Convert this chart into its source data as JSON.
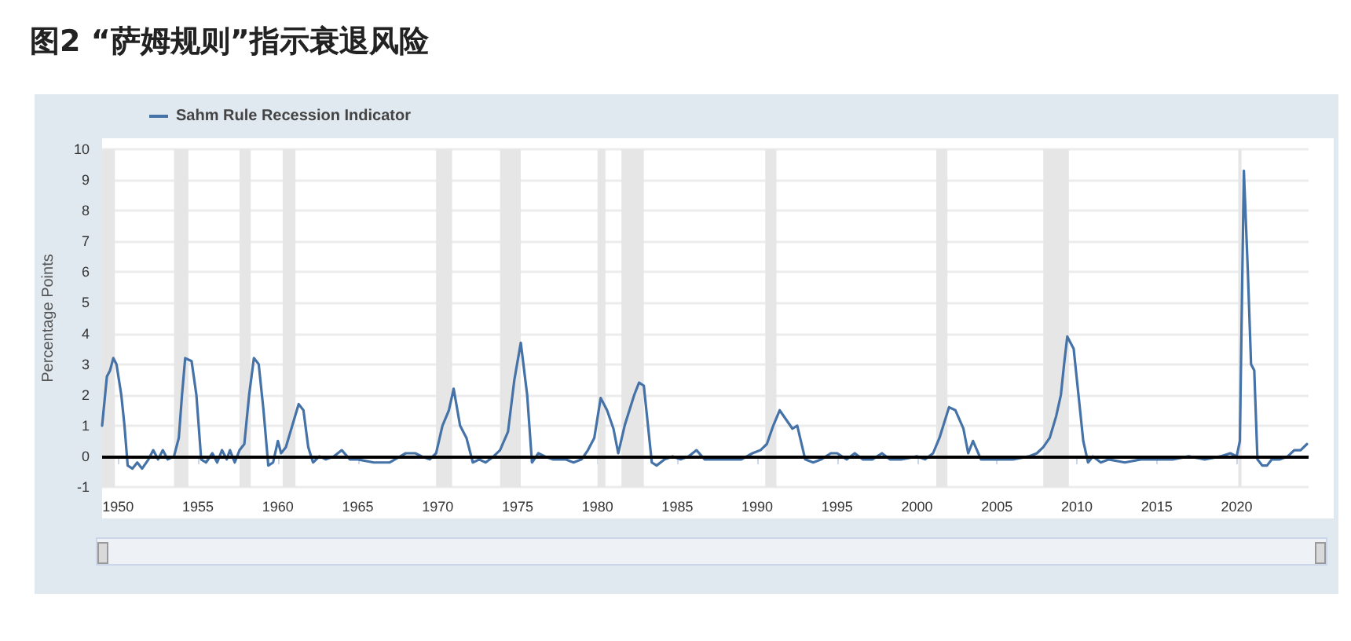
{
  "chart_data": {
    "type": "line",
    "title": "图2 “萨姆规则”指示衰退风险",
    "ylabel": "Percentage Points",
    "series": [
      {
        "name": "Sahm Rule Recession Indicator",
        "color": "#4572a7",
        "x": [
          1949.0,
          1949.3,
          1949.5,
          1949.7,
          1949.9,
          1950.2,
          1950.4,
          1950.6,
          1950.9,
          1951.2,
          1951.5,
          1951.9,
          1952.2,
          1952.5,
          1952.8,
          1953.1,
          1953.5,
          1953.8,
          1954.0,
          1954.2,
          1954.6,
          1954.9,
          1955.2,
          1955.5,
          1955.9,
          1956.2,
          1956.5,
          1956.8,
          1957.0,
          1957.3,
          1957.6,
          1957.9,
          1958.2,
          1958.5,
          1958.8,
          1959.1,
          1959.4,
          1959.7,
          1960.0,
          1960.2,
          1960.5,
          1960.9,
          1961.3,
          1961.6,
          1961.9,
          1962.2,
          1962.6,
          1963.0,
          1963.5,
          1964.0,
          1964.5,
          1965.0,
          1966.0,
          1967.0,
          1968.0,
          1968.6,
          1969.0,
          1969.5,
          1969.9,
          1970.3,
          1970.7,
          1971.0,
          1971.4,
          1971.8,
          1972.2,
          1972.6,
          1973.0,
          1973.5,
          1973.9,
          1974.4,
          1974.8,
          1975.2,
          1975.6,
          1975.9,
          1976.3,
          1976.7,
          1977.2,
          1977.6,
          1978.0,
          1978.5,
          1979.0,
          1979.4,
          1979.8,
          1980.2,
          1980.6,
          1981.0,
          1981.3,
          1981.7,
          1982.3,
          1982.6,
          1982.9,
          1983.4,
          1983.7,
          1984.2,
          1984.7,
          1985.2,
          1985.7,
          1986.2,
          1986.7,
          1987.2,
          1988.0,
          1989.0,
          1989.7,
          1990.2,
          1990.6,
          1991.0,
          1991.4,
          1991.8,
          1992.2,
          1992.5,
          1993.0,
          1993.5,
          1994.0,
          1994.6,
          1995.0,
          1995.6,
          1996.1,
          1996.6,
          1997.2,
          1997.8,
          1998.3,
          1999.0,
          2000.0,
          2000.5,
          2001.0,
          2001.4,
          2002.0,
          2002.4,
          2002.9,
          2003.2,
          2003.5,
          2004.0,
          2004.5,
          2005.0,
          2006.0,
          2007.0,
          2007.5,
          2007.9,
          2008.3,
          2008.7,
          2009.0,
          2009.2,
          2009.4,
          2009.8,
          2010.1,
          2010.4,
          2010.7,
          2011.0,
          2011.5,
          2012.0,
          2013.0,
          2014.0,
          2015.0,
          2016.0,
          2017.0,
          2018.0,
          2019.0,
          2019.6,
          2020.0,
          2020.2,
          2020.45,
          2020.7,
          2020.9,
          2021.1,
          2021.3,
          2021.6,
          2021.9,
          2022.2,
          2022.7,
          2023.2,
          2023.6,
          2024.0,
          2024.4
        ],
        "values": [
          1.0,
          2.6,
          2.8,
          3.2,
          3.0,
          2.0,
          1.0,
          -0.3,
          -0.4,
          -0.2,
          -0.4,
          -0.1,
          0.2,
          -0.1,
          0.2,
          -0.1,
          0.0,
          0.6,
          2.0,
          3.2,
          3.1,
          2.0,
          -0.1,
          -0.2,
          0.1,
          -0.2,
          0.2,
          -0.1,
          0.2,
          -0.2,
          0.2,
          0.4,
          2.0,
          3.2,
          3.0,
          1.5,
          -0.3,
          -0.2,
          0.5,
          0.1,
          0.3,
          1.0,
          1.7,
          1.5,
          0.3,
          -0.2,
          0.0,
          -0.1,
          0.0,
          0.2,
          -0.1,
          -0.1,
          -0.2,
          -0.2,
          0.1,
          0.1,
          0.0,
          -0.1,
          0.1,
          1.0,
          1.5,
          2.2,
          1.0,
          0.6,
          -0.2,
          -0.1,
          -0.2,
          0.0,
          0.2,
          0.8,
          2.5,
          3.7,
          2.0,
          -0.2,
          0.1,
          0.0,
          -0.1,
          -0.1,
          -0.1,
          -0.2,
          -0.1,
          0.2,
          0.6,
          1.9,
          1.5,
          0.9,
          0.1,
          1.0,
          2.0,
          2.4,
          2.3,
          -0.2,
          -0.3,
          -0.1,
          0.0,
          -0.1,
          0.0,
          0.2,
          -0.1,
          -0.1,
          -0.1,
          -0.1,
          0.1,
          0.2,
          0.4,
          1.0,
          1.5,
          1.2,
          0.9,
          1.0,
          -0.1,
          -0.2,
          -0.1,
          0.1,
          0.1,
          -0.1,
          0.1,
          -0.1,
          -0.1,
          0.1,
          -0.1,
          -0.1,
          0.0,
          -0.1,
          0.1,
          0.6,
          1.6,
          1.5,
          0.9,
          0.1,
          0.5,
          -0.1,
          -0.1,
          -0.1,
          -0.1,
          0.0,
          0.1,
          0.3,
          0.6,
          1.3,
          2.0,
          3.0,
          3.9,
          3.5,
          2.0,
          0.5,
          -0.2,
          0.0,
          -0.2,
          -0.1,
          -0.2,
          -0.1,
          -0.1,
          -0.1,
          0.0,
          -0.1,
          0.0,
          0.1,
          0.0,
          0.5,
          9.3,
          6.0,
          3.0,
          2.8,
          -0.1,
          -0.3,
          -0.3,
          -0.1,
          -0.1,
          0.0,
          0.2,
          0.2,
          0.4
        ]
      }
    ],
    "xlim": [
      1949,
      2024.5
    ],
    "xticks": [
      1950,
      1955,
      1960,
      1965,
      1970,
      1975,
      1980,
      1985,
      1990,
      1995,
      2000,
      2005,
      2010,
      2015,
      2020
    ],
    "ylim": [
      -1,
      10
    ],
    "yticks": [
      -1,
      0,
      1,
      2,
      3,
      4,
      5,
      6,
      7,
      8,
      9,
      10
    ],
    "bands": [
      {
        "axis": "x",
        "from": 1948.9,
        "to": 1949.8,
        "color": "#e6e6e6"
      },
      {
        "axis": "x",
        "from": 1953.5,
        "to": 1954.4,
        "color": "#e6e6e6"
      },
      {
        "axis": "x",
        "from": 1957.6,
        "to": 1958.3,
        "color": "#e6e6e6"
      },
      {
        "axis": "x",
        "from": 1960.3,
        "to": 1961.1,
        "color": "#e6e6e6"
      },
      {
        "axis": "x",
        "from": 1969.9,
        "to": 1970.9,
        "color": "#e6e6e6"
      },
      {
        "axis": "x",
        "from": 1973.9,
        "to": 1975.2,
        "color": "#e6e6e6"
      },
      {
        "axis": "x",
        "from": 1980.0,
        "to": 1980.5,
        "color": "#e6e6e6"
      },
      {
        "axis": "x",
        "from": 1981.5,
        "to": 1982.9,
        "color": "#e6e6e6"
      },
      {
        "axis": "x",
        "from": 1990.5,
        "to": 1991.2,
        "color": "#e6e6e6"
      },
      {
        "axis": "x",
        "from": 2001.2,
        "to": 2001.9,
        "color": "#e6e6e6"
      },
      {
        "axis": "x",
        "from": 2007.9,
        "to": 2009.5,
        "color": "#e6e6e6"
      },
      {
        "axis": "x",
        "from": 2020.1,
        "to": 2020.3,
        "color": "#e6e6e6"
      }
    ],
    "ref_lines": [
      {
        "axis": "y",
        "value": 0,
        "color": "#000000",
        "line_style": "solid"
      }
    ],
    "grid": "y",
    "legend": "top left",
    "marker": "none",
    "line_style": "solid"
  }
}
